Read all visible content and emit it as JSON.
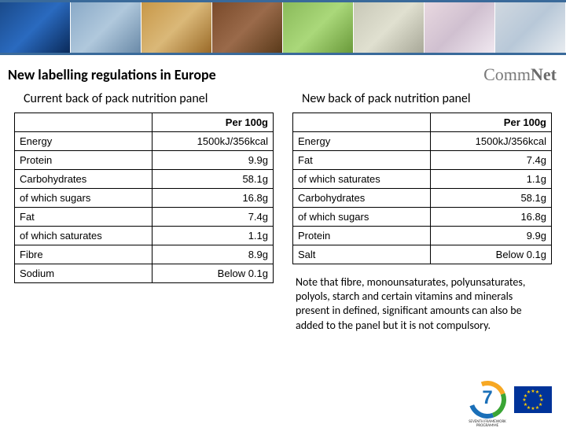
{
  "page_title": "New labelling regulations in Europe",
  "logo": {
    "part1": "Comm",
    "part2": "Net"
  },
  "left": {
    "title": "Current back of pack nutrition panel",
    "header_right": "Per 100g",
    "rows": [
      {
        "label": "Energy",
        "value": "1500kJ/356kcal"
      },
      {
        "label": "Protein",
        "value": "9.9g"
      },
      {
        "label": "Carbohydrates",
        "value": "58.1g"
      },
      {
        "label": "of which sugars",
        "value": "16.8g"
      },
      {
        "label": "Fat",
        "value": "7.4g"
      },
      {
        "label": "of which saturates",
        "value": "1.1g"
      },
      {
        "label": "Fibre",
        "value": "8.9g"
      },
      {
        "label": "Sodium",
        "value": "Below 0.1g"
      }
    ]
  },
  "right": {
    "title": "New back of pack nutrition panel",
    "header_right": "Per 100g",
    "rows": [
      {
        "label": "Energy",
        "value": "1500kJ/356kcal"
      },
      {
        "label": "Fat",
        "value": "7.4g"
      },
      {
        "label": "of which saturates",
        "value": "1.1g"
      },
      {
        "label": "Carbohydrates",
        "value": "58.1g"
      },
      {
        "label": "of which sugars",
        "value": "16.8g"
      },
      {
        "label": "Protein",
        "value": "9.9g"
      },
      {
        "label": "Salt",
        "value": "Below 0.1g"
      }
    ]
  },
  "note": "Note that fibre, monounsaturates, polyunsaturates, polyols, starch and certain vitamins and minerals present in defined, significant amounts can also be added to the panel but it is not compulsory.",
  "fp7": {
    "number": "7",
    "label": "SEVENTH FRAMEWORK PROGRAMME"
  },
  "colors": {
    "border": "#000000",
    "banner_border": "#3a6a9a",
    "eu_blue": "#003399",
    "eu_gold": "#ffcc00"
  }
}
